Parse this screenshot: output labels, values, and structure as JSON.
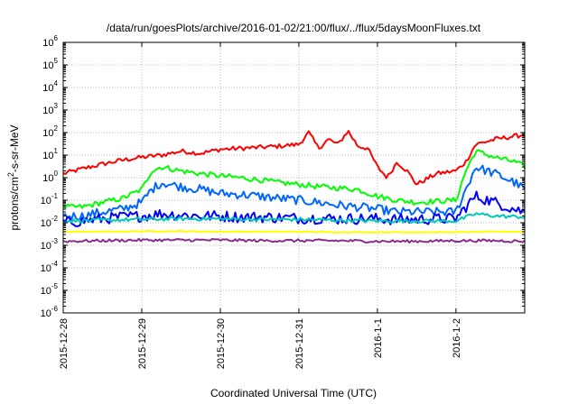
{
  "chart_data": {
    "type": "line",
    "title": "/data/run/goesPlots/archive/2016-01-02/21:00/flux/../flux/5daysMoonFluxes.txt",
    "xlabel": "Coordinated Universal Time (UTC)",
    "ylabel": {
      "pre": "protons/cm",
      "sup": "2",
      "post": "-s-sr-MeV"
    },
    "y_scale": "log",
    "ylim": [
      1e-06,
      1000000.0
    ],
    "y_ticks": [
      {
        "value": 1e-06,
        "base": "10",
        "exp": "-6"
      },
      {
        "value": 1e-05,
        "base": "10",
        "exp": "-5"
      },
      {
        "value": 0.0001,
        "base": "10",
        "exp": "-4"
      },
      {
        "value": 0.001,
        "base": "10",
        "exp": "-3"
      },
      {
        "value": 0.01,
        "base": "10",
        "exp": "-2"
      },
      {
        "value": 0.1,
        "base": "10",
        "exp": "-1"
      },
      {
        "value": 1,
        "base": "10",
        "exp": "0"
      },
      {
        "value": 10,
        "base": "10",
        "exp": "1"
      },
      {
        "value": 100,
        "base": "10",
        "exp": "2"
      },
      {
        "value": 1000,
        "base": "10",
        "exp": "3"
      },
      {
        "value": 10000,
        "base": "10",
        "exp": "4"
      },
      {
        "value": 100000,
        "base": "10",
        "exp": "5"
      },
      {
        "value": 1000000,
        "base": "10",
        "exp": "6"
      }
    ],
    "x_ticks": [
      "2015-12-28",
      "2015-12-29",
      "2015-12-30",
      "2015-12-31",
      "2016-1-1",
      "2016-1-2"
    ],
    "xlim": [
      "2015-12-28",
      "2016-01-02 21:00"
    ],
    "grid": true,
    "legend": "none",
    "series": [
      {
        "color": "#ff0000",
        "x": [
          "2015-12-28 00:00",
          "2015-12-28 06:00",
          "2015-12-28 12:00",
          "2015-12-28 18:00",
          "2015-12-29 00:00",
          "2015-12-29 06:00",
          "2015-12-29 12:00",
          "2015-12-29 18:00",
          "2015-12-30 00:00",
          "2015-12-30 06:00",
          "2015-12-30 12:00",
          "2015-12-30 18:00",
          "2015-12-31 00:00",
          "2015-12-31 03:00",
          "2015-12-31 06:00",
          "2015-12-31 09:00",
          "2015-12-31 12:00",
          "2015-12-31 15:00",
          "2015-12-31 18:00",
          "2015-12-31 21:00",
          "2016-01-01 00:00",
          "2016-01-01 03:00",
          "2016-01-01 06:00",
          "2016-01-01 09:00",
          "2016-01-01 12:00",
          "2016-01-01 18:00",
          "2016-01-02 00:00",
          "2016-01-02 03:00",
          "2016-01-02 06:00",
          "2016-01-02 12:00",
          "2016-01-02 18:00",
          "2016-01-02 21:00"
        ],
        "y": [
          1.5,
          2.5,
          4,
          6,
          8,
          10,
          15,
          12,
          18,
          20,
          22,
          25,
          30,
          100,
          20,
          50,
          30,
          120,
          25,
          20,
          3,
          1,
          5,
          2,
          0.5,
          1.5,
          2,
          5,
          30,
          50,
          70,
          80
        ]
      },
      {
        "color": "#00ff00",
        "x": [
          "2015-12-28 00:00",
          "2015-12-28 06:00",
          "2015-12-28 12:00",
          "2015-12-28 18:00",
          "2015-12-29 00:00",
          "2015-12-29 03:00",
          "2015-12-29 06:00",
          "2015-12-29 12:00",
          "2015-12-29 18:00",
          "2015-12-30 00:00",
          "2015-12-30 06:00",
          "2015-12-30 12:00",
          "2015-12-30 18:00",
          "2015-12-31 00:00",
          "2015-12-31 06:00",
          "2015-12-31 12:00",
          "2015-12-31 18:00",
          "2016-01-01 00:00",
          "2016-01-01 06:00",
          "2016-01-01 12:00",
          "2016-01-01 18:00",
          "2016-01-02 00:00",
          "2016-01-02 03:00",
          "2016-01-02 06:00",
          "2016-01-02 12:00",
          "2016-01-02 18:00",
          "2016-01-02 21:00"
        ],
        "y": [
          0.05,
          0.05,
          0.08,
          0.12,
          0.3,
          2,
          3,
          2,
          1.5,
          1.2,
          1,
          0.8,
          0.6,
          0.5,
          0.4,
          0.35,
          0.3,
          0.15,
          0.1,
          0.08,
          0.09,
          0.1,
          2,
          15,
          8,
          5,
          3
        ]
      },
      {
        "color": "#0066ff",
        "x": [
          "2015-12-28 00:00",
          "2015-12-28 06:00",
          "2015-12-28 12:00",
          "2015-12-28 18:00",
          "2015-12-29 00:00",
          "2015-12-29 03:00",
          "2015-12-29 06:00",
          "2015-12-29 12:00",
          "2015-12-29 18:00",
          "2015-12-30 00:00",
          "2015-12-30 06:00",
          "2015-12-30 12:00",
          "2015-12-30 18:00",
          "2015-12-31 00:00",
          "2015-12-31 06:00",
          "2015-12-31 12:00",
          "2015-12-31 18:00",
          "2016-01-01 00:00",
          "2016-01-01 06:00",
          "2016-01-01 12:00",
          "2016-01-01 18:00",
          "2016-01-02 00:00",
          "2016-01-02 03:00",
          "2016-01-02 06:00",
          "2016-01-02 12:00",
          "2016-01-02 18:00",
          "2016-01-02 21:00"
        ],
        "y": [
          0.02,
          0.02,
          0.03,
          0.04,
          0.08,
          0.3,
          0.6,
          0.4,
          0.3,
          0.2,
          0.18,
          0.15,
          0.12,
          0.1,
          0.08,
          0.06,
          0.05,
          0.04,
          0.03,
          0.03,
          0.03,
          0.03,
          0.3,
          3,
          1.5,
          0.6,
          0.3
        ]
      },
      {
        "color": "#0000ff",
        "x": [
          "2015-12-28 00:00",
          "2015-12-28 06:00",
          "2015-12-28 12:00",
          "2015-12-28 18:00",
          "2015-12-29 00:00",
          "2015-12-29 06:00",
          "2015-12-29 12:00",
          "2015-12-29 18:00",
          "2015-12-30 00:00",
          "2015-12-30 06:00",
          "2015-12-30 12:00",
          "2015-12-30 18:00",
          "2015-12-31 00:00",
          "2015-12-31 06:00",
          "2015-12-31 12:00",
          "2015-12-31 18:00",
          "2016-01-01 00:00",
          "2016-01-01 06:00",
          "2016-01-01 12:00",
          "2016-01-01 18:00",
          "2016-01-02 00:00",
          "2016-01-02 03:00",
          "2016-01-02 06:00",
          "2016-01-02 12:00",
          "2016-01-02 18:00",
          "2016-01-02 21:00"
        ],
        "y": [
          0.01,
          0.012,
          0.015,
          0.018,
          0.02,
          0.025,
          0.022,
          0.02,
          0.02,
          0.018,
          0.018,
          0.017,
          0.016,
          0.016,
          0.015,
          0.015,
          0.015,
          0.014,
          0.014,
          0.015,
          0.015,
          0.05,
          0.15,
          0.08,
          0.04,
          0.03
        ]
      },
      {
        "color": "#00c8b4",
        "x": [
          "2015-12-28 00:00",
          "2015-12-28 12:00",
          "2015-12-29 00:00",
          "2015-12-29 12:00",
          "2015-12-30 00:00",
          "2015-12-30 12:00",
          "2015-12-31 00:00",
          "2015-12-31 12:00",
          "2016-01-01 00:00",
          "2016-01-01 12:00",
          "2016-01-02 00:00",
          "2016-01-02 06:00",
          "2016-01-02 12:00",
          "2016-01-02 21:00"
        ],
        "y": [
          0.012,
          0.013,
          0.014,
          0.015,
          0.015,
          0.014,
          0.014,
          0.013,
          0.012,
          0.012,
          0.012,
          0.025,
          0.02,
          0.018
        ]
      },
      {
        "color": "#ffff00",
        "x": [
          "2015-12-28 00:00",
          "2015-12-28 12:00",
          "2015-12-29 00:00",
          "2015-12-29 12:00",
          "2015-12-30 00:00",
          "2015-12-30 12:00",
          "2015-12-31 00:00",
          "2015-12-31 12:00",
          "2016-01-01 00:00",
          "2016-01-01 12:00",
          "2016-01-02 00:00",
          "2016-01-02 12:00",
          "2016-01-02 21:00"
        ],
        "y": [
          0.004,
          0.004,
          0.0042,
          0.0042,
          0.004,
          0.004,
          0.004,
          0.0038,
          0.0038,
          0.0038,
          0.0038,
          0.004,
          0.004
        ]
      },
      {
        "color": "#8b2b8b",
        "x": [
          "2015-12-28 00:00",
          "2015-12-28 12:00",
          "2015-12-29 00:00",
          "2015-12-29 12:00",
          "2015-12-30 00:00",
          "2015-12-30 12:00",
          "2015-12-31 00:00",
          "2015-12-31 12:00",
          "2016-01-01 00:00",
          "2016-01-01 12:00",
          "2016-01-02 00:00",
          "2016-01-02 12:00",
          "2016-01-02 21:00"
        ],
        "y": [
          0.0015,
          0.0016,
          0.0017,
          0.0017,
          0.0017,
          0.0016,
          0.0016,
          0.0016,
          0.0015,
          0.0015,
          0.0016,
          0.0016,
          0.0015
        ]
      }
    ]
  }
}
